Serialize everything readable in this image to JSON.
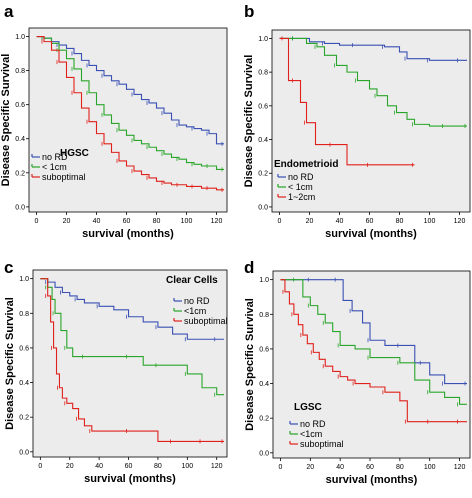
{
  "chart_data": [
    {
      "panel": "a",
      "type": "line",
      "legend_title": "HGSC",
      "legend_placement": "lower-left",
      "xlabel": "survival (months)",
      "ylabel": "Disease Specific Survival",
      "xlim": [
        -5,
        127
      ],
      "ylim": [
        -0.03,
        1.05
      ],
      "xticks": [
        "0",
        "20",
        "40",
        "60",
        "80",
        "100",
        "120"
      ],
      "yticks": [
        "0.0",
        "0.2",
        "0.4",
        "0.6",
        "0.8",
        "1.0"
      ],
      "series": [
        {
          "name": "no RD",
          "color": "#3a50b3",
          "x": [
            0,
            5,
            10,
            15,
            20,
            25,
            30,
            35,
            40,
            45,
            50,
            55,
            60,
            65,
            70,
            75,
            80,
            85,
            90,
            95,
            100,
            105,
            110,
            115,
            120,
            125
          ],
          "y": [
            1.0,
            0.99,
            0.97,
            0.95,
            0.93,
            0.9,
            0.86,
            0.83,
            0.8,
            0.77,
            0.74,
            0.72,
            0.69,
            0.66,
            0.63,
            0.61,
            0.58,
            0.55,
            0.51,
            0.48,
            0.47,
            0.46,
            0.45,
            0.43,
            0.37,
            0.37
          ]
        },
        {
          "name": "< 1cm",
          "color": "#2aa52a",
          "x": [
            0,
            5,
            10,
            15,
            20,
            25,
            30,
            35,
            40,
            45,
            50,
            55,
            60,
            65,
            70,
            75,
            80,
            85,
            90,
            95,
            100,
            105,
            110,
            115,
            120,
            125
          ],
          "y": [
            1.0,
            0.99,
            0.96,
            0.92,
            0.87,
            0.81,
            0.74,
            0.67,
            0.6,
            0.54,
            0.49,
            0.45,
            0.42,
            0.39,
            0.37,
            0.35,
            0.33,
            0.31,
            0.29,
            0.28,
            0.26,
            0.25,
            0.24,
            0.24,
            0.22,
            0.22
          ]
        },
        {
          "name": "suboptimal",
          "color": "#e0211b",
          "x": [
            0,
            5,
            10,
            15,
            20,
            25,
            30,
            35,
            40,
            45,
            50,
            55,
            60,
            65,
            70,
            75,
            80,
            85,
            90,
            95,
            100,
            105,
            110,
            115,
            120,
            125
          ],
          "y": [
            1.0,
            0.97,
            0.92,
            0.85,
            0.76,
            0.67,
            0.58,
            0.5,
            0.43,
            0.37,
            0.32,
            0.27,
            0.24,
            0.21,
            0.19,
            0.17,
            0.15,
            0.14,
            0.13,
            0.13,
            0.12,
            0.12,
            0.11,
            0.11,
            0.1,
            0.1
          ]
        }
      ]
    },
    {
      "panel": "b",
      "type": "line",
      "legend_title": "Endometrioid",
      "legend_placement": "lower-left",
      "xlabel": "survival (months)",
      "ylabel": "Disease Specific Survival",
      "xlim": [
        -5,
        127
      ],
      "ylim": [
        -0.03,
        1.05
      ],
      "xticks": [
        "0",
        "20",
        "40",
        "60",
        "80",
        "100",
        "120"
      ],
      "yticks": [
        "0.0",
        "0.2",
        "0.4",
        "0.6",
        "0.8",
        "1.0"
      ],
      "series": [
        {
          "name": "no RD",
          "color": "#3a50b3",
          "x": [
            0,
            10,
            20,
            30,
            40,
            50,
            60,
            70,
            80,
            85,
            90,
            100,
            110,
            120,
            125
          ],
          "y": [
            1.0,
            1.0,
            0.98,
            0.97,
            0.96,
            0.96,
            0.96,
            0.95,
            0.92,
            0.88,
            0.88,
            0.87,
            0.87,
            0.87,
            0.87
          ]
        },
        {
          "name": "< 1cm",
          "color": "#2aa52a",
          "x": [
            0,
            10,
            18,
            25,
            30,
            38,
            45,
            52,
            60,
            65,
            72,
            78,
            85,
            90,
            100,
            110,
            120,
            125
          ],
          "y": [
            1.0,
            1.0,
            0.97,
            0.95,
            0.9,
            0.84,
            0.8,
            0.75,
            0.7,
            0.66,
            0.6,
            0.56,
            0.52,
            0.49,
            0.48,
            0.48,
            0.48,
            0.48
          ]
        },
        {
          "name": "1~2cm",
          "color": "#e0211b",
          "x": [
            0,
            3,
            6,
            10,
            14,
            18,
            24,
            35,
            45,
            60,
            75,
            90
          ],
          "y": [
            1.0,
            1.0,
            0.75,
            0.75,
            0.62,
            0.5,
            0.37,
            0.37,
            0.25,
            0.25,
            0.25,
            0.25
          ]
        }
      ]
    },
    {
      "panel": "c",
      "type": "line",
      "legend_title": "Clear Cells",
      "legend_placement": "upper-right",
      "xlabel": "survival (months)",
      "ylabel": "Disease Specific Survival",
      "xlim": [
        -5,
        127
      ],
      "ylim": [
        -0.03,
        1.05
      ],
      "xticks": [
        "0",
        "20",
        "40",
        "60",
        "80",
        "100",
        "120"
      ],
      "yticks": [
        "0.0",
        "0.2",
        "0.4",
        "0.6",
        "0.8",
        "1.0"
      ],
      "series": [
        {
          "name": "no RD",
          "color": "#3a50b3",
          "x": [
            0,
            5,
            10,
            15,
            20,
            25,
            30,
            40,
            50,
            60,
            70,
            80,
            90,
            100,
            110,
            120,
            125
          ],
          "y": [
            1.0,
            0.98,
            0.95,
            0.92,
            0.9,
            0.88,
            0.86,
            0.84,
            0.82,
            0.78,
            0.75,
            0.72,
            0.68,
            0.65,
            0.65,
            0.65,
            0.65
          ]
        },
        {
          "name": "<1cm",
          "color": "#2aa52a",
          "x": [
            0,
            5,
            8,
            10,
            14,
            18,
            22,
            30,
            40,
            60,
            70,
            80,
            90,
            100,
            110,
            120,
            125
          ],
          "y": [
            1.0,
            0.95,
            0.88,
            0.8,
            0.7,
            0.6,
            0.55,
            0.55,
            0.55,
            0.55,
            0.5,
            0.5,
            0.5,
            0.45,
            0.37,
            0.33,
            0.33
          ]
        },
        {
          "name": "suboptimal",
          "color": "#e0211b",
          "x": [
            0,
            5,
            7,
            9,
            11,
            13,
            15,
            18,
            22,
            26,
            30,
            35,
            45,
            60,
            80,
            90,
            100,
            110,
            120,
            125
          ],
          "y": [
            1.0,
            0.9,
            0.75,
            0.6,
            0.45,
            0.37,
            0.31,
            0.28,
            0.25,
            0.19,
            0.15,
            0.12,
            0.12,
            0.12,
            0.06,
            0.06,
            0.06,
            0.06,
            0.06,
            0.06
          ]
        }
      ]
    },
    {
      "panel": "d",
      "type": "line",
      "legend_title": "LGSC",
      "legend_placement": "lower-left",
      "xlabel": "survival (months)",
      "ylabel": "Disease Specific Survival",
      "xlim": [
        -5,
        127
      ],
      "ylim": [
        -0.03,
        1.05
      ],
      "xticks": [
        "0",
        "20",
        "40",
        "60",
        "80",
        "100",
        "120"
      ],
      "yticks": [
        "0.0",
        "0.2",
        "0.4",
        "0.6",
        "0.8",
        "1.0"
      ],
      "series": [
        {
          "name": "no RD",
          "color": "#3a50b3",
          "x": [
            0,
            20,
            30,
            38,
            42,
            48,
            55,
            60,
            70,
            80,
            90,
            95,
            100,
            110,
            120,
            125
          ],
          "y": [
            1.0,
            1.0,
            1.0,
            1.0,
            0.88,
            0.82,
            0.75,
            0.65,
            0.62,
            0.62,
            0.52,
            0.52,
            0.45,
            0.4,
            0.4,
            0.4
          ]
        },
        {
          "name": "<1cm",
          "color": "#2aa52a",
          "x": [
            0,
            10,
            15,
            20,
            25,
            30,
            35,
            40,
            50,
            60,
            70,
            80,
            90,
            100,
            110,
            120,
            125
          ],
          "y": [
            1.0,
            1.0,
            0.9,
            0.85,
            0.8,
            0.75,
            0.7,
            0.62,
            0.6,
            0.55,
            0.55,
            0.52,
            0.42,
            0.35,
            0.32,
            0.28,
            0.28
          ]
        },
        {
          "name": "suboptimal",
          "color": "#e0211b",
          "x": [
            0,
            3,
            6,
            9,
            12,
            15,
            18,
            22,
            26,
            30,
            35,
            40,
            45,
            50,
            60,
            70,
            80,
            85,
            90,
            100,
            110,
            120,
            125
          ],
          "y": [
            1.0,
            0.93,
            0.86,
            0.8,
            0.74,
            0.68,
            0.63,
            0.58,
            0.54,
            0.5,
            0.47,
            0.44,
            0.42,
            0.4,
            0.38,
            0.35,
            0.3,
            0.18,
            0.18,
            0.18,
            0.18,
            0.18,
            0.18
          ]
        }
      ]
    }
  ]
}
